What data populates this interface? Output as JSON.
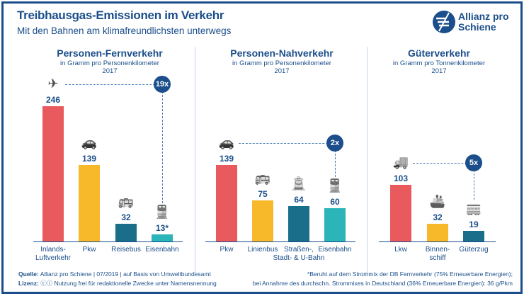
{
  "header": {
    "title": "Treibhausgas-Emissionen im Verkehr",
    "subtitle": "Mit den Bahnen am klimafreundlichsten unterwegs",
    "logo": "Allianz pro Schiene"
  },
  "colors": {
    "air": "#e85a5e",
    "car": "#f7b82a",
    "bus": "#1a6e8a",
    "rail": "#2bb5b8",
    "text": "#1b4e8a"
  },
  "chart_data": [
    {
      "type": "bar",
      "title": "Personen-Fernverkehr",
      "unit": "in Gramm pro Personenkilometer",
      "year": "2017",
      "categories": [
        "Inlands-\nLuftverkehr",
        "Pkw",
        "Reisebus",
        "Eisenbahn"
      ],
      "values": [
        246,
        139,
        32,
        13
      ],
      "labels": [
        "246",
        "139",
        "32",
        "13*"
      ],
      "icons": [
        "plane-icon",
        "car-icon",
        "bus-icon",
        "train-icon"
      ],
      "multiplier": "19x"
    },
    {
      "type": "bar",
      "title": "Personen-Nahverkehr",
      "unit": "in Gramm pro Personenkilometer",
      "year": "2017",
      "categories": [
        "Pkw",
        "Linienbus",
        "Straßen-,\nStadt- & U-Bahn",
        "Eisenbahn"
      ],
      "values": [
        139,
        75,
        64,
        60
      ],
      "labels": [
        "139",
        "75",
        "64",
        "60"
      ],
      "icons": [
        "car-icon",
        "bus-icon",
        "tram-icon",
        "train-icon"
      ],
      "multiplier": "2x"
    },
    {
      "type": "bar",
      "title": "Güterverkehr",
      "unit": "in Gramm pro Tonnenkilometer",
      "year": "2017",
      "categories": [
        "Lkw",
        "Binnen-\nschiff",
        "Güterzug"
      ],
      "values": [
        103,
        32,
        19
      ],
      "labels": [
        "103",
        "32",
        "19"
      ],
      "icons": [
        "truck-icon",
        "ship-icon",
        "freight-train-icon"
      ],
      "multiplier": "5x"
    }
  ],
  "footer": {
    "source_label": "Quelle:",
    "source": "Allianz pro Schiene | 07/2019 | auf Basis von Umweltbundesamt",
    "license_label": "Lizenz:",
    "license": "Nutzung frei für redaktionelle Zwecke unter Namensnennung",
    "note1": "*Beruht auf dem Strommix der DB Fernverkehr (75% Erneuerbare Energien);",
    "note2": "bei Annahme des durchschn. Strommixes in Deutschland (36% Erneuerbare Energien): 36 g/Pkm"
  }
}
